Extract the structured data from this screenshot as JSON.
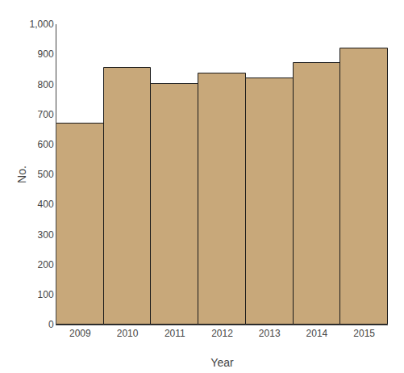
{
  "chart_data": {
    "type": "bar",
    "categories": [
      "2009",
      "2010",
      "2011",
      "2012",
      "2013",
      "2014",
      "2015"
    ],
    "values": [
      669,
      855,
      800,
      835,
      820,
      872,
      919
    ],
    "color": "#C8A87A",
    "xlabel": "Year",
    "ylabel": "No.",
    "ylim": [
      0,
      1000
    ],
    "yticks": [
      0,
      100,
      200,
      300,
      400,
      500,
      600,
      700,
      800,
      900,
      {
        "value": 1000,
        "label": "1,000"
      }
    ],
    "grid": false
  }
}
